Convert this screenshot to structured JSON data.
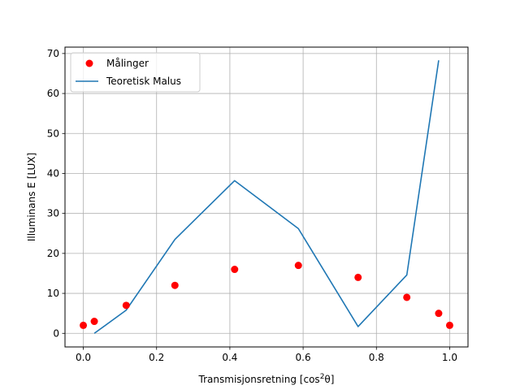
{
  "chart_data": {
    "type": "scatter+line",
    "title": "",
    "xlabel_main": "Transmisjonsretning [cos",
    "xlabel_sup": "2",
    "xlabel_tail": "θ]",
    "ylabel": "Illuminans E [LUX]",
    "xlim": [
      -0.05,
      1.05
    ],
    "ylim": [
      -3.4,
      71.6
    ],
    "xticks": [
      0.0,
      0.2,
      0.4,
      0.6,
      0.8,
      1.0
    ],
    "xtick_labels": [
      "0.0",
      "0.2",
      "0.4",
      "0.6",
      "0.8",
      "1.0"
    ],
    "yticks": [
      0,
      10,
      20,
      30,
      40,
      50,
      60,
      70
    ],
    "ytick_labels": [
      "0",
      "10",
      "20",
      "30",
      "40",
      "50",
      "60",
      "70"
    ],
    "grid": true,
    "legend_position": "top-left",
    "series": [
      {
        "name": "Målinger",
        "kind": "scatter",
        "color": "#ff0000",
        "x": [
          0.0,
          0.03,
          0.117,
          0.25,
          0.413,
          0.587,
          0.75,
          0.883,
          0.97,
          1.0
        ],
        "y": [
          2,
          3,
          7,
          12,
          16,
          17,
          14,
          9,
          5,
          2
        ]
      },
      {
        "name": "Teoretisk Malus",
        "kind": "line",
        "color": "#1f77b4",
        "x": [
          0.03,
          0.117,
          0.25,
          0.413,
          0.587,
          0.75,
          0.883,
          0.97
        ],
        "y": [
          0.0,
          5.8,
          23.5,
          38.2,
          26.2,
          1.7,
          14.6,
          68.3
        ]
      }
    ]
  }
}
